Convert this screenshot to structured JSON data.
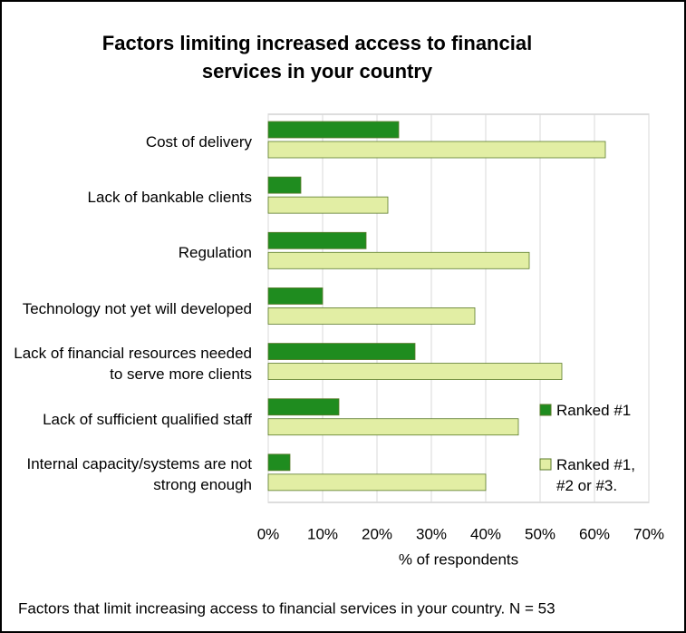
{
  "chart_data": {
    "type": "bar",
    "orientation": "horizontal",
    "title": "Factors limiting increased access to financial services in your country",
    "categories": [
      "Cost of delivery",
      "Lack of bankable clients",
      "Regulation",
      "Technology not yet will developed",
      "Lack of financial resources needed to serve more clients",
      "Lack of sufficient qualified staff",
      "Internal capacity/systems are not strong enough"
    ],
    "series": [
      {
        "name": "Ranked #1",
        "color": "#1f8c1f",
        "values": [
          24,
          6,
          18,
          10,
          27,
          13,
          4
        ]
      },
      {
        "name": "Ranked #1, #2 or #3.",
        "color": "#e2eea4",
        "values": [
          62,
          22,
          48,
          38,
          54,
          46,
          40
        ]
      }
    ],
    "xlim": [
      0,
      70
    ],
    "xticks": [
      {
        "value": 0,
        "label": "0%"
      },
      {
        "value": 10,
        "label": "10%"
      },
      {
        "value": 20,
        "label": "20%"
      },
      {
        "value": 30,
        "label": "30%"
      },
      {
        "value": 40,
        "label": "40%"
      },
      {
        "value": 50,
        "label": "50%"
      },
      {
        "value": 60,
        "label": "60%"
      },
      {
        "value": 70,
        "label": "70%"
      }
    ],
    "xlabel": "% of respondents",
    "grid": true,
    "legend": "right",
    "footnote": "Factors that limit increasing access to financial services in your country. N = 53"
  }
}
